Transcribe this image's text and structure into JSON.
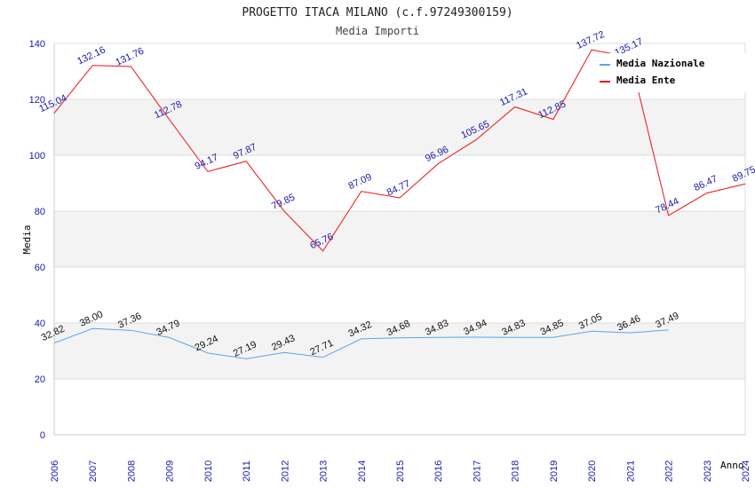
{
  "chart_data": {
    "type": "line",
    "title": "PROGETTO ITACA MILANO (c.f.97249300159)",
    "subtitle": "Media Importi",
    "xlabel": "Anno",
    "ylabel": "Media",
    "ylim": [
      0,
      140
    ],
    "yticks": [
      "0",
      "20",
      "40",
      "60",
      "80",
      "100",
      "120",
      "140"
    ],
    "yticks_values": [
      0,
      20,
      40,
      60,
      80,
      100,
      120,
      140
    ],
    "categories": [
      "2006",
      "2007",
      "2008",
      "2009",
      "2010",
      "2011",
      "2012",
      "2013",
      "2014",
      "2015",
      "2016",
      "2017",
      "2018",
      "2019",
      "2020",
      "2021",
      "2022",
      "2023",
      "2024"
    ],
    "legend_position": "top-right",
    "colors": {
      "nazionale": "#5aa5e8",
      "ente": "#ee1111",
      "tick_text": "#1a1aaa",
      "band": "#f3f3f3",
      "grid": "#dddddd"
    },
    "series": [
      {
        "key": "nazionale",
        "name": "Media Nazionale",
        "values": [
          32.82,
          38.0,
          37.36,
          34.79,
          29.24,
          27.19,
          29.43,
          27.71,
          34.32,
          34.68,
          34.83,
          34.94,
          34.83,
          34.85,
          37.05,
          36.46,
          37.49,
          null,
          null
        ],
        "labels": [
          "32.82",
          "38.00",
          "37.36",
          "34.79",
          "29.24",
          "27.19",
          "29.43",
          "27.71",
          "34.32",
          "34.68",
          "34.83",
          "34.94",
          "34.83",
          "34.85",
          "37.05",
          "36.46",
          "37.49",
          null,
          null
        ]
      },
      {
        "key": "ente",
        "name": "Media Ente",
        "values": [
          115.04,
          132.16,
          131.76,
          112.78,
          94.17,
          97.87,
          79.85,
          65.76,
          87.09,
          84.77,
          96.96,
          105.65,
          117.31,
          112.85,
          137.72,
          135.17,
          78.44,
          86.47,
          89.75
        ],
        "labels": [
          "115.04",
          "132.16",
          "131.76",
          "112.78",
          "94.17",
          "97.87",
          "79.85",
          "65.76",
          "87.09",
          "84.77",
          "96.96",
          "105.65",
          "117.31",
          "112.85",
          "137.72",
          "135.17",
          "78.44",
          "86.47",
          "89.75"
        ]
      }
    ]
  }
}
